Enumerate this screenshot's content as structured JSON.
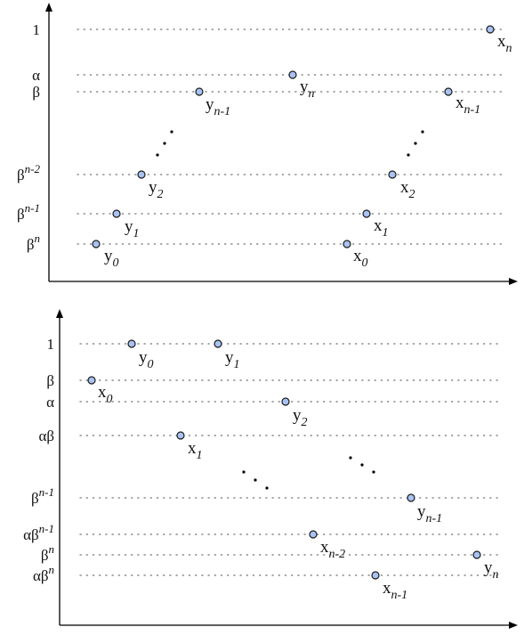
{
  "colors": {
    "axis": "#000000",
    "guide": "#6f6f6f",
    "point_fill": "#a8c2f2",
    "point_stroke": "#1b1b1b",
    "text": "#111111"
  },
  "diagrams": [
    {
      "name": "top-diagram",
      "levels": [
        {
          "key": "one",
          "base": "1",
          "sup": ""
        },
        {
          "key": "alpha",
          "base": "α",
          "sup": ""
        },
        {
          "key": "beta",
          "base": "β",
          "sup": ""
        },
        {
          "key": "beta_n_minus_2",
          "base": "β",
          "sup": "n-2"
        },
        {
          "key": "beta_n_minus_1",
          "base": "β",
          "sup": "n-1"
        },
        {
          "key": "beta_n",
          "base": "β",
          "sup": "n"
        }
      ],
      "points": [
        {
          "key": "y0",
          "level": "beta_n",
          "base": "y",
          "sub": "0"
        },
        {
          "key": "y1",
          "level": "beta_n_minus_1",
          "base": "y",
          "sub": "1"
        },
        {
          "key": "y2",
          "level": "beta_n_minus_2",
          "base": "y",
          "sub": "2"
        },
        {
          "key": "y_n_minus_1",
          "level": "beta",
          "base": "y",
          "sub": "n-1"
        },
        {
          "key": "y_n",
          "level": "alpha",
          "base": "y",
          "sub": "n"
        },
        {
          "key": "x0",
          "level": "beta_n",
          "base": "x",
          "sub": "0"
        },
        {
          "key": "x1",
          "level": "beta_n_minus_1",
          "base": "x",
          "sub": "1"
        },
        {
          "key": "x2",
          "level": "beta_n_minus_2",
          "base": "x",
          "sub": "2"
        },
        {
          "key": "x_n_minus_1",
          "level": "beta",
          "base": "x",
          "sub": "n-1"
        },
        {
          "key": "x_n",
          "level": "one",
          "base": "x",
          "sub": "n"
        }
      ]
    },
    {
      "name": "bottom-diagram",
      "levels": [
        {
          "key": "one",
          "base": "1",
          "sup": ""
        },
        {
          "key": "beta",
          "base": "β",
          "sup": ""
        },
        {
          "key": "alpha",
          "base": "α",
          "sup": ""
        },
        {
          "key": "alpha_beta",
          "base": "αβ",
          "sup": ""
        },
        {
          "key": "beta_n_minus_1",
          "base": "β",
          "sup": "n-1"
        },
        {
          "key": "alpha_beta_n_minus_1",
          "base": "αβ",
          "sup": "n-1"
        },
        {
          "key": "beta_n",
          "base": "β",
          "sup": "n"
        },
        {
          "key": "alpha_beta_n",
          "base": "αβ",
          "sup": "n"
        }
      ],
      "points": [
        {
          "key": "x0",
          "level": "beta",
          "base": "x",
          "sub": "0"
        },
        {
          "key": "y0",
          "level": "one",
          "base": "y",
          "sub": "0"
        },
        {
          "key": "y1",
          "level": "one",
          "base": "y",
          "sub": "1"
        },
        {
          "key": "x1",
          "level": "alpha_beta",
          "base": "x",
          "sub": "1"
        },
        {
          "key": "y2",
          "level": "alpha",
          "base": "y",
          "sub": "2"
        },
        {
          "key": "x_n_minus_2",
          "level": "alpha_beta_n_minus_1",
          "base": "x",
          "sub": "n-2"
        },
        {
          "key": "x_n_minus_1",
          "level": "alpha_beta_n",
          "base": "x",
          "sub": "n-1"
        },
        {
          "key": "y_n_minus_1",
          "level": "beta_n_minus_1",
          "base": "y",
          "sub": "n-1"
        },
        {
          "key": "y_n",
          "level": "beta_n",
          "base": "y",
          "sub": "n"
        }
      ]
    }
  ]
}
